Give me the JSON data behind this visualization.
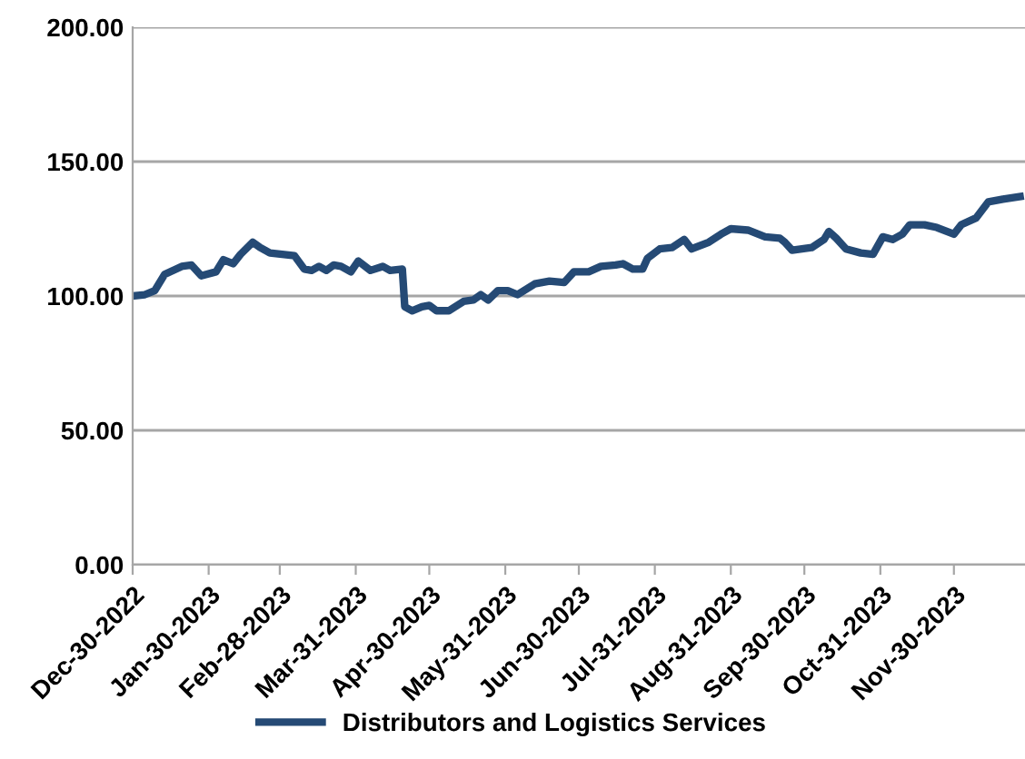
{
  "chart_data": {
    "type": "line",
    "x": [
      "2022-12-30",
      "2023-01-04",
      "2023-01-08",
      "2023-01-12",
      "2023-01-19",
      "2023-01-23",
      "2023-01-27",
      "2023-02-02",
      "2023-02-05",
      "2023-02-09",
      "2023-02-12",
      "2023-02-17",
      "2023-02-20",
      "2023-02-24",
      "2023-03-01",
      "2023-03-06",
      "2023-03-10",
      "2023-03-13",
      "2023-03-16",
      "2023-03-19",
      "2023-03-22",
      "2023-03-25",
      "2023-03-29",
      "2023-04-01",
      "2023-04-06",
      "2023-04-11",
      "2023-04-14",
      "2023-04-19",
      "2023-04-20",
      "2023-04-23",
      "2023-04-27",
      "2023-04-30",
      "2023-05-03",
      "2023-05-08",
      "2023-05-14",
      "2023-05-18",
      "2023-05-21",
      "2023-05-24",
      "2023-05-28",
      "2023-06-01",
      "2023-06-05",
      "2023-06-12",
      "2023-06-18",
      "2023-06-24",
      "2023-06-28",
      "2023-07-04",
      "2023-07-09",
      "2023-07-15",
      "2023-07-18",
      "2023-07-22",
      "2023-07-26",
      "2023-07-28",
      "2023-08-02",
      "2023-08-07",
      "2023-08-12",
      "2023-08-15",
      "2023-08-22",
      "2023-08-27",
      "2023-08-31",
      "2023-09-07",
      "2023-09-14",
      "2023-09-20",
      "2023-09-22",
      "2023-09-25",
      "2023-10-03",
      "2023-10-08",
      "2023-10-10",
      "2023-10-13",
      "2023-10-17",
      "2023-10-23",
      "2023-10-28",
      "2023-11-01",
      "2023-11-05",
      "2023-11-09",
      "2023-11-12",
      "2023-11-18",
      "2023-11-23",
      "2023-11-30",
      "2023-12-03",
      "2023-12-09",
      "2023-12-14",
      "2023-12-20",
      "2023-12-27"
    ],
    "series": [
      {
        "name": "Distributors and Logistics Services",
        "color": "#254a75",
        "values": [
          100,
          100.5,
          102,
          108,
          111,
          111.5,
          107.5,
          109,
          113.5,
          112,
          115.5,
          120,
          118,
          116,
          115.5,
          115,
          110,
          109.5,
          111,
          109.5,
          111.5,
          111,
          109,
          113,
          109.5,
          111,
          109.5,
          110,
          96,
          94.5,
          96,
          96.5,
          94.5,
          94.5,
          98,
          98.5,
          100.5,
          98.5,
          102,
          102,
          100.5,
          104.5,
          105.5,
          105,
          109,
          109,
          111,
          111.5,
          112,
          110,
          110,
          114,
          117.5,
          118,
          121,
          117.5,
          120,
          123,
          125,
          124.5,
          122,
          121.5,
          120,
          117,
          118,
          121,
          124,
          121.5,
          117.5,
          116,
          115.5,
          122,
          121,
          123,
          126.5,
          126.5,
          125.5,
          123,
          126.5,
          129,
          135,
          136,
          137
        ]
      }
    ],
    "xlim": [
      "2022-12-30",
      "2023-12-29"
    ],
    "xticks": [
      {
        "value": "2022-12-30",
        "label": "Dec-30-2022"
      },
      {
        "value": "2023-01-30",
        "label": "Jan-30-2023"
      },
      {
        "value": "2023-02-28",
        "label": "Feb-28-2023"
      },
      {
        "value": "2023-03-31",
        "label": "Mar-31-2023"
      },
      {
        "value": "2023-04-30",
        "label": "Apr-30-2023"
      },
      {
        "value": "2023-05-31",
        "label": "May-31-2023"
      },
      {
        "value": "2023-06-30",
        "label": "Jun-30-2023"
      },
      {
        "value": "2023-07-31",
        "label": "Jul-31-2023"
      },
      {
        "value": "2023-08-31",
        "label": "Aug-31-2023"
      },
      {
        "value": "2023-09-30",
        "label": "Sep-30-2023"
      },
      {
        "value": "2023-10-31",
        "label": "Oct-31-2023"
      },
      {
        "value": "2023-11-30",
        "label": "Nov-30-2023"
      }
    ],
    "ylim": [
      0,
      200
    ],
    "yticks": [
      {
        "value": 0,
        "label": "0.00"
      },
      {
        "value": 50,
        "label": "50.00"
      },
      {
        "value": 100,
        "label": "100.00"
      },
      {
        "value": 150,
        "label": "150.00"
      },
      {
        "value": 200,
        "label": "200.00"
      }
    ],
    "grid": "y",
    "legend": "bottom",
    "line_style": "solid"
  }
}
